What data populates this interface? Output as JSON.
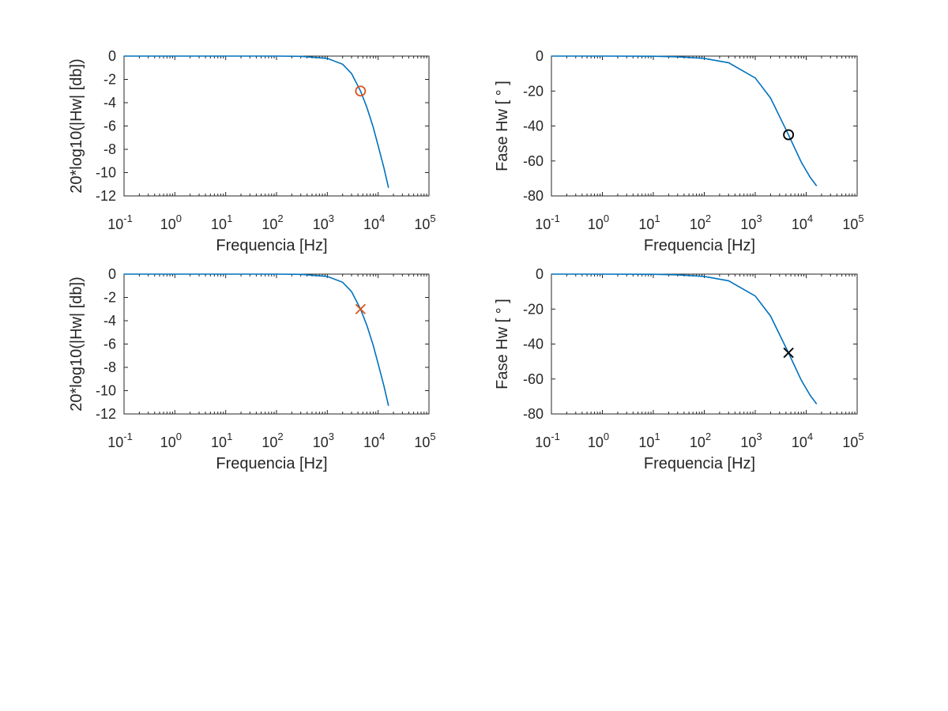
{
  "chart_data": [
    {
      "type": "line",
      "xscale": "log",
      "xlim": [
        0.1,
        100000
      ],
      "ylim": [
        -12,
        0
      ],
      "xlabel": "Frequencia [Hz]",
      "ylabel": "20*log10(|Hw|  [db])",
      "xtick_labels": [
        "10^-1",
        "10^0",
        "10^1",
        "10^2",
        "10^3",
        "10^4",
        "10^5"
      ],
      "ytick_labels": [
        "-12",
        "-10",
        "-8",
        "-6",
        "-4",
        "-2",
        "0"
      ],
      "grid": false,
      "box": true,
      "series": [
        {
          "color": "#0072BD",
          "x": [
            0.1,
            1,
            10,
            100,
            300,
            1000,
            2000,
            3000,
            4500,
            6000,
            8000,
            10000,
            13000,
            16000
          ],
          "y": [
            0,
            0,
            0,
            0,
            -0.02,
            -0.2,
            -0.7,
            -1.5,
            -3.0,
            -4.4,
            -6.1,
            -7.7,
            -9.6,
            -11.3
          ]
        }
      ],
      "marker": {
        "symbol": "circle",
        "color": "#D95319",
        "x": 4500,
        "y": -3.0
      }
    },
    {
      "type": "line",
      "xscale": "log",
      "xlim": [
        0.1,
        100000
      ],
      "ylim": [
        -80,
        0
      ],
      "xlabel": "Frequencia [Hz]",
      "ylabel": "Fase Hw [ ° ]",
      "xtick_labels": [
        "10^-1",
        "10^0",
        "10^1",
        "10^2",
        "10^3",
        "10^4",
        "10^5"
      ],
      "ytick_labels": [
        "-80",
        "-60",
        "-40",
        "-20",
        "0"
      ],
      "grid": false,
      "box": true,
      "series": [
        {
          "color": "#0072BD",
          "x": [
            0.1,
            1,
            10,
            30,
            100,
            300,
            1000,
            2000,
            4500,
            8000,
            12000,
            16000
          ],
          "y": [
            0,
            0,
            -0.1,
            -0.4,
            -1.3,
            -3.8,
            -12.5,
            -24,
            -45,
            -60.6,
            -69.4,
            -74.3
          ]
        }
      ],
      "marker": {
        "symbol": "circle",
        "color": "#000000",
        "x": 4500,
        "y": -45
      }
    },
    {
      "type": "line",
      "xscale": "log",
      "xlim": [
        0.1,
        100000
      ],
      "ylim": [
        -12,
        0
      ],
      "xlabel": "Frequencia [Hz]",
      "ylabel": "20*log10(|Hw|  [db])",
      "xtick_labels": [
        "10^-1",
        "10^0",
        "10^1",
        "10^2",
        "10^3",
        "10^4",
        "10^5"
      ],
      "ytick_labels": [
        "-12",
        "-10",
        "-8",
        "-6",
        "-4",
        "-2",
        "0"
      ],
      "grid": false,
      "box": true,
      "series": [
        {
          "color": "#0072BD",
          "x": [
            0.1,
            1,
            10,
            100,
            300,
            1000,
            2000,
            3000,
            4500,
            6000,
            8000,
            10000,
            13000,
            16000
          ],
          "y": [
            0,
            0,
            0,
            0,
            -0.02,
            -0.2,
            -0.7,
            -1.5,
            -3.0,
            -4.4,
            -6.1,
            -7.7,
            -9.6,
            -11.3
          ]
        }
      ],
      "marker": {
        "symbol": "x",
        "color": "#D95319",
        "x": 4500,
        "y": -3.0
      }
    },
    {
      "type": "line",
      "xscale": "log",
      "xlim": [
        0.1,
        100000
      ],
      "ylim": [
        -80,
        0
      ],
      "xlabel": "Frequencia [Hz]",
      "ylabel": "Fase Hw [ ° ]",
      "xtick_labels": [
        "10^-1",
        "10^0",
        "10^1",
        "10^2",
        "10^3",
        "10^4",
        "10^5"
      ],
      "ytick_labels": [
        "-80",
        "-60",
        "-40",
        "-20",
        "0"
      ],
      "grid": false,
      "box": true,
      "series": [
        {
          "color": "#0072BD",
          "x": [
            0.1,
            1,
            10,
            30,
            100,
            300,
            1000,
            2000,
            4500,
            8000,
            12000,
            16000
          ],
          "y": [
            0,
            0,
            -0.1,
            -0.4,
            -1.3,
            -3.8,
            -12.5,
            -24,
            -45,
            -60.6,
            -69.4,
            -74.3
          ]
        }
      ],
      "marker": {
        "symbol": "x",
        "color": "#000000",
        "x": 4500,
        "y": -45
      }
    }
  ]
}
